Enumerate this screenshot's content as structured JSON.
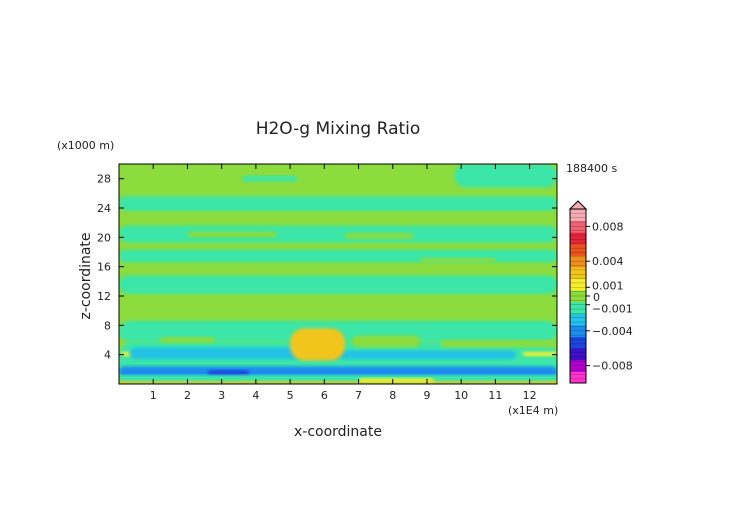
{
  "chart_data": {
    "type": "heatmap",
    "title": "H2O-g Mixing Ratio",
    "xlabel": "x-coordinate",
    "ylabel": "z-coordinate",
    "x_unit": "(x1E4 m)",
    "y_unit": "(x1000 m)",
    "time_label": "188400 s",
    "xlim": [
      0,
      12.8
    ],
    "ylim": [
      0,
      30
    ],
    "x_ticks": [
      "1",
      "2",
      "3",
      "4",
      "5",
      "6",
      "7",
      "8",
      "9",
      "10",
      "11",
      "12"
    ],
    "y_ticks": [
      "4",
      "8",
      "12",
      "16",
      "20",
      "24",
      "28"
    ],
    "colorbar": {
      "range": [
        -0.01,
        0.01
      ],
      "tick_labels": [
        "0.008",
        "0.004",
        "0.001",
        "0",
        "−0.001",
        "−0.004",
        "−0.008"
      ],
      "tick_values": [
        0.008,
        0.004,
        0.001,
        0,
        -0.001,
        -0.004,
        -0.008
      ],
      "colors": [
        "#ff33cc",
        "#b300cc",
        "#3f0fcc",
        "#1e44e0",
        "#1a8cf0",
        "#22c3e6",
        "#3be6a8",
        "#8bdc3c",
        "#f5f02a",
        "#f2c51e",
        "#ef8f1c",
        "#e9541c",
        "#e5243a",
        "#f06272",
        "#f6aab2"
      ]
    },
    "regions": [
      {
        "value": 0.0,
        "x": [
          0,
          12.8
        ],
        "z": [
          0,
          30
        ]
      },
      {
        "value": -0.0008,
        "x": [
          3.6,
          5.2
        ],
        "z": [
          27.6,
          28.4
        ]
      },
      {
        "value": -0.0008,
        "x": [
          9.8,
          12.8
        ],
        "z": [
          26.8,
          30
        ]
      },
      {
        "value": -0.0008,
        "x": [
          0,
          12.8
        ],
        "z": [
          23.6,
          25.6
        ]
      },
      {
        "value": -0.0008,
        "x": [
          0,
          12.8
        ],
        "z": [
          19.3,
          21.6
        ]
      },
      {
        "value": -0.0008,
        "x": [
          0,
          12.8
        ],
        "z": [
          16.6,
          18.3
        ]
      },
      {
        "value": -0.0008,
        "x": [
          0,
          12.8
        ],
        "z": [
          12.3,
          14.8
        ]
      },
      {
        "value": 0.0,
        "x": [
          2.0,
          4.6
        ],
        "z": [
          20.0,
          20.8
        ]
      },
      {
        "value": 0.0,
        "x": [
          6.6,
          8.6
        ],
        "z": [
          19.8,
          20.6
        ]
      },
      {
        "value": 0.0,
        "x": [
          2.2,
          3.6
        ],
        "z": [
          15.4,
          16.0
        ]
      },
      {
        "value": 0.0,
        "x": [
          4.2,
          5.6
        ],
        "z": [
          15.2,
          15.8
        ]
      },
      {
        "value": 0.0,
        "x": [
          8.8,
          11.0
        ],
        "z": [
          16.6,
          17.2
        ]
      },
      {
        "value": -0.0008,
        "x": [
          0,
          12.8
        ],
        "z": [
          5.8,
          8.6
        ]
      },
      {
        "value": -0.0008,
        "x": [
          0,
          12.8
        ],
        "z": [
          0,
          5.8
        ]
      },
      {
        "value": 0.0,
        "x": [
          6.8,
          8.8
        ],
        "z": [
          5.0,
          6.6
        ]
      },
      {
        "value": 0.0,
        "x": [
          9.4,
          12.8
        ],
        "z": [
          5.0,
          6.0
        ]
      },
      {
        "value": 0.0,
        "x": [
          1.2,
          2.8
        ],
        "z": [
          5.6,
          6.4
        ]
      },
      {
        "value": 0.0018,
        "x": [
          0.05,
          0.95
        ],
        "z": [
          3.8,
          4.4
        ]
      },
      {
        "value": 0.0018,
        "x": [
          11.8,
          12.8
        ],
        "z": [
          3.8,
          4.4
        ]
      },
      {
        "value": -0.0022,
        "x": [
          0.3,
          5.4
        ],
        "z": [
          3.4,
          5.0
        ]
      },
      {
        "value": -0.0022,
        "x": [
          5.8,
          11.6
        ],
        "z": [
          3.4,
          4.6
        ]
      },
      {
        "value": -0.0035,
        "x": [
          0,
          12.8
        ],
        "z": [
          1.0,
          2.4
        ]
      },
      {
        "value": -0.0048,
        "x": [
          2.6,
          3.8
        ],
        "z": [
          1.2,
          1.9
        ]
      },
      {
        "value": -0.0012,
        "x": [
          0,
          12.8
        ],
        "z": [
          0.4,
          1.2
        ]
      },
      {
        "value": 0.0028,
        "x": [
          5.0,
          6.6
        ],
        "z": [
          3.2,
          7.6
        ]
      },
      {
        "value": 0.0028,
        "x": [
          0,
          12.8
        ],
        "z": [
          0,
          0.4
        ]
      },
      {
        "value": 0.0012,
        "x": [
          7.0,
          9.2
        ],
        "z": [
          0.2,
          0.8
        ]
      }
    ]
  }
}
